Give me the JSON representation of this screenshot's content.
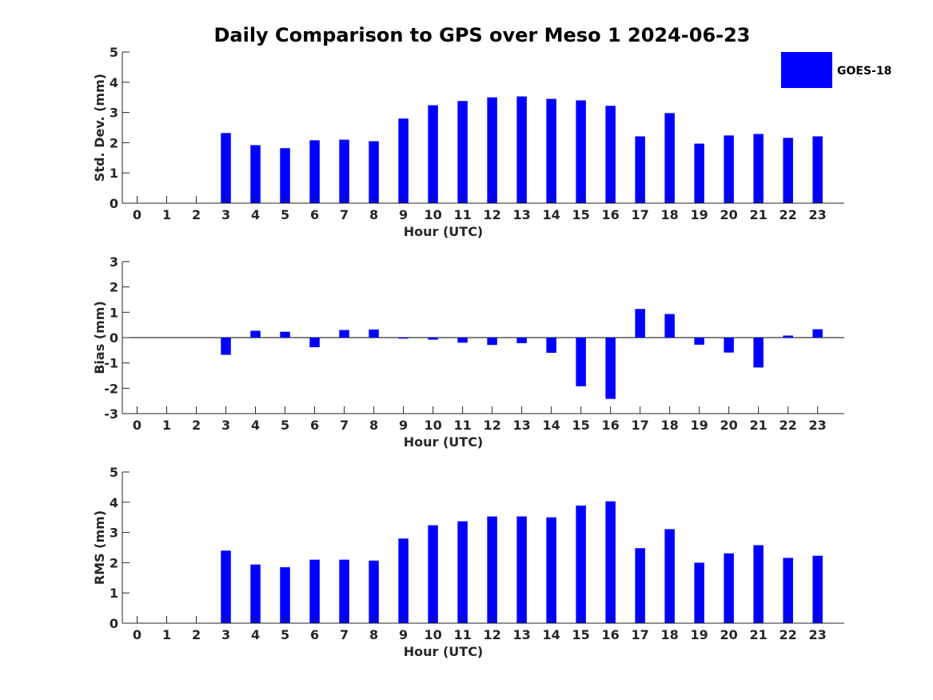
{
  "title": "Daily Comparison to GPS over Meso 1 2024-06-23",
  "legend": {
    "label": "GOES-18",
    "color": "#0000ff",
    "placement": "top-right"
  },
  "colors": {
    "bar": "#0000ff",
    "axis": "#262626"
  },
  "chart_data": [
    {
      "type": "bar",
      "id": "std",
      "ylabel": "Std. Dev. (mm)",
      "xlabel": "Hour (UTC)",
      "ylim": [
        0,
        5
      ],
      "yticks": [
        0,
        1,
        2,
        3,
        4,
        5
      ],
      "xlim": [
        -0.5,
        23.9
      ],
      "categories": [
        0,
        1,
        2,
        3,
        4,
        5,
        6,
        7,
        8,
        9,
        10,
        11,
        12,
        13,
        14,
        15,
        16,
        17,
        18,
        19,
        20,
        21,
        22,
        23
      ],
      "series": [
        {
          "name": "GOES-18",
          "values": [
            null,
            null,
            null,
            2.32,
            1.92,
            1.82,
            2.08,
            2.1,
            2.05,
            2.8,
            3.24,
            3.38,
            3.5,
            3.53,
            3.45,
            3.4,
            3.22,
            2.21,
            2.98,
            1.97,
            2.24,
            2.29,
            2.16,
            2.21
          ]
        }
      ],
      "grid": false
    },
    {
      "type": "bar",
      "id": "bias",
      "ylabel": "Bias (mm)",
      "xlabel": "Hour (UTC)",
      "ylim": [
        -3,
        3
      ],
      "yticks": [
        -3,
        -2,
        -1,
        0,
        1,
        2,
        3
      ],
      "xlim": [
        -0.5,
        23.9
      ],
      "categories": [
        0,
        1,
        2,
        3,
        4,
        5,
        6,
        7,
        8,
        9,
        10,
        11,
        12,
        13,
        14,
        15,
        16,
        17,
        18,
        19,
        20,
        21,
        22,
        23
      ],
      "series": [
        {
          "name": "GOES-18",
          "values": [
            null,
            null,
            null,
            -0.68,
            0.27,
            0.23,
            -0.38,
            0.3,
            0.32,
            -0.04,
            -0.08,
            -0.2,
            -0.29,
            -0.22,
            -0.6,
            -1.92,
            -2.42,
            1.13,
            0.93,
            -0.28,
            -0.59,
            -1.18,
            0.08,
            0.33
          ]
        }
      ],
      "grid": false
    },
    {
      "type": "bar",
      "id": "rms",
      "ylabel": "RMS (mm)",
      "xlabel": "Hour (UTC)",
      "ylim": [
        0,
        5
      ],
      "yticks": [
        0,
        1,
        2,
        3,
        4,
        5
      ],
      "xlim": [
        -0.5,
        23.9
      ],
      "categories": [
        0,
        1,
        2,
        3,
        4,
        5,
        6,
        7,
        8,
        9,
        10,
        11,
        12,
        13,
        14,
        15,
        16,
        17,
        18,
        19,
        20,
        21,
        22,
        23
      ],
      "series": [
        {
          "name": "GOES-18",
          "values": [
            null,
            null,
            null,
            2.4,
            1.94,
            1.85,
            2.1,
            2.1,
            2.07,
            2.8,
            3.24,
            3.37,
            3.53,
            3.53,
            3.5,
            3.89,
            4.03,
            2.48,
            3.11,
            2.0,
            2.31,
            2.58,
            2.16,
            2.23
          ]
        }
      ],
      "grid": false
    }
  ]
}
